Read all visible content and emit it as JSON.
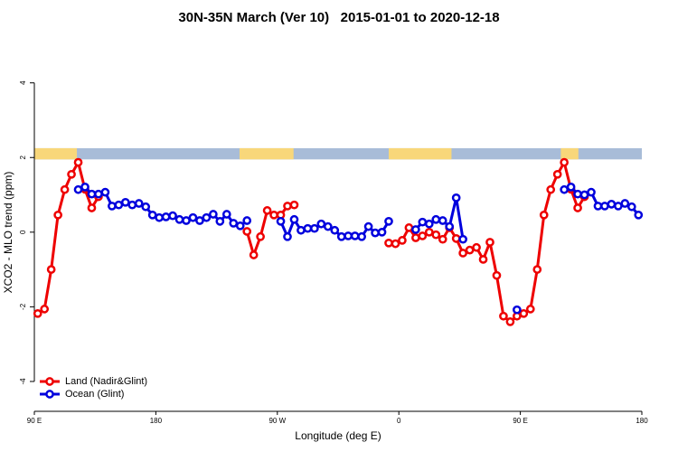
{
  "chart_data": {
    "type": "line",
    "title": "30N-35N March (Ver 10)   2015-01-01 to 2020-12-18",
    "xlabel": "Longitude (deg E)",
    "ylabel": "XCO2 - MLO trend (ppm)",
    "xlim": [
      90,
      540
    ],
    "ylim": [
      -4.8,
      5.3
    ],
    "xticks": [
      {
        "value": 90,
        "label": "90 E"
      },
      180,
      {
        "value": 270,
        "label": "90 W"
      },
      {
        "value": 360,
        "label": "0"
      },
      {
        "value": 450,
        "label": "90 E"
      },
      {
        "value": 540,
        "label": "180"
      }
    ],
    "yticks": [
      -4,
      -2,
      0,
      2,
      4
    ],
    "legend": "bottom-left",
    "mask": {
      "ylim": [
        1.95,
        2.25
      ],
      "ocean_color": "#a8bcd8",
      "land_color": "#f8d77a",
      "land": [
        [
          90,
          121.5
        ],
        [
          242,
          282
        ],
        [
          352.5,
          399
        ],
        [
          480,
          493
        ]
      ]
    },
    "x": [
      92.5,
      97.5,
      102.5,
      107.5,
      112.5,
      117.5,
      122.5,
      127.5,
      132.5,
      137.5,
      142.5,
      147.5,
      152.5,
      157.5,
      162.5,
      167.5,
      172.5,
      177.5,
      182.5,
      187.5,
      192.5,
      197.5,
      202.5,
      207.5,
      212.5,
      217.5,
      222.5,
      227.5,
      232.5,
      237.5,
      242.5,
      247.5,
      252.5,
      257.5,
      262.5,
      267.5,
      272.5,
      277.5,
      282.5,
      287.5,
      292.5,
      297.5,
      302.5,
      307.5,
      312.5,
      317.5,
      322.5,
      327.5,
      332.5,
      337.5,
      342.5,
      347.5,
      352.5,
      357.5,
      362.5,
      367.5,
      372.5,
      377.5,
      382.5,
      387.5,
      392.5,
      397.5,
      402.5,
      407.5,
      412.5,
      417.5,
      422.5,
      427.5,
      432.5,
      437.5,
      442.5,
      447.5,
      452.5,
      457.5,
      462.5,
      467.5,
      472.5,
      477.5,
      482.5,
      487.5,
      492.5,
      497.5,
      502.5,
      507.5,
      512.5,
      517.5,
      522.5,
      527.5,
      532.5,
      537.5
    ],
    "series": [
      {
        "name": "Land (Nadir&Glint)",
        "color": "#ee0000",
        "values": [
          -2.18,
          -2.06,
          -1.0,
          0.46,
          1.14,
          1.55,
          1.87,
          1.15,
          0.65,
          0.95,
          null,
          null,
          null,
          null,
          null,
          null,
          null,
          null,
          null,
          null,
          null,
          null,
          null,
          null,
          null,
          null,
          null,
          null,
          null,
          null,
          null,
          0.02,
          -0.61,
          -0.12,
          0.58,
          0.46,
          0.46,
          0.7,
          0.73,
          null,
          null,
          null,
          null,
          null,
          null,
          null,
          null,
          null,
          null,
          null,
          null,
          null,
          -0.29,
          -0.31,
          -0.22,
          0.12,
          -0.15,
          -0.1,
          0.0,
          -0.07,
          -0.19,
          0.12,
          -0.17,
          -0.56,
          -0.48,
          -0.41,
          -0.73,
          -0.27,
          -1.16,
          -2.25,
          -2.4,
          -2.25,
          -2.18,
          -2.06,
          -1.0,
          0.46,
          1.14,
          1.55,
          1.87,
          1.15,
          0.65,
          0.95,
          null,
          null,
          null,
          null,
          null,
          null,
          null,
          null
        ]
      },
      {
        "name": "Ocean (Glint)",
        "color": "#0000dd",
        "values": [
          null,
          null,
          null,
          null,
          null,
          null,
          1.14,
          1.21,
          1.02,
          1.02,
          1.07,
          0.7,
          0.73,
          0.8,
          0.73,
          0.77,
          0.68,
          0.46,
          0.39,
          0.41,
          0.44,
          0.34,
          0.31,
          0.39,
          0.31,
          0.39,
          0.48,
          0.29,
          0.48,
          0.24,
          0.17,
          0.31,
          null,
          null,
          null,
          null,
          0.29,
          -0.12,
          0.34,
          0.05,
          0.1,
          0.1,
          0.22,
          0.15,
          0.05,
          -0.12,
          -0.1,
          -0.1,
          -0.12,
          0.15,
          -0.02,
          0.0,
          0.29,
          null,
          null,
          null,
          0.07,
          0.27,
          0.22,
          0.34,
          0.31,
          0.15,
          0.92,
          -0.19,
          null,
          null,
          null,
          null,
          null,
          null,
          null,
          -2.08,
          null,
          null,
          null,
          null,
          null,
          null,
          1.14,
          1.21,
          1.02,
          1.0,
          1.07,
          0.7,
          0.7,
          0.75,
          0.7,
          0.77,
          0.68,
          0.46
        ]
      }
    ]
  }
}
